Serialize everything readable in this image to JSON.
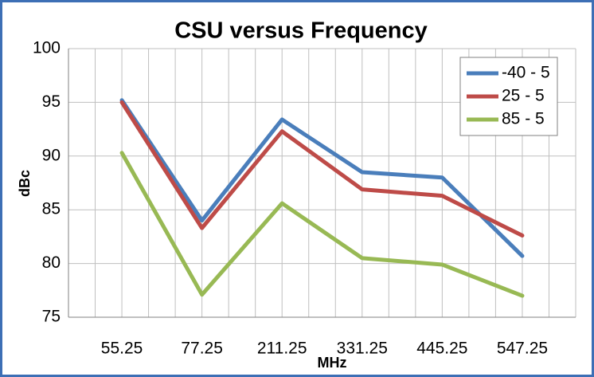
{
  "chart_data": {
    "type": "line",
    "title": "CSU versus Frequency",
    "x_label": "MHz",
    "y_label": "dBc",
    "categories": [
      "55.25",
      "77.25",
      "211.25",
      "331.25",
      "445.25",
      "547.25"
    ],
    "series": [
      {
        "name": "-40 - 5",
        "color": "#4a7ebb",
        "values": [
          95.2,
          84.0,
          93.4,
          88.5,
          88.0,
          80.7
        ]
      },
      {
        "name": "25 - 5",
        "color": "#be4b48",
        "values": [
          95.0,
          83.3,
          92.3,
          86.9,
          86.3,
          82.6
        ]
      },
      {
        "name": "85 - 5",
        "color": "#98b954",
        "values": [
          90.3,
          77.1,
          85.6,
          80.5,
          79.9,
          77.0
        ]
      }
    ],
    "ylim": [
      75,
      100
    ],
    "yticks": [
      75,
      80,
      85,
      90,
      95,
      100
    ],
    "grid": true,
    "legend": "top-right"
  }
}
